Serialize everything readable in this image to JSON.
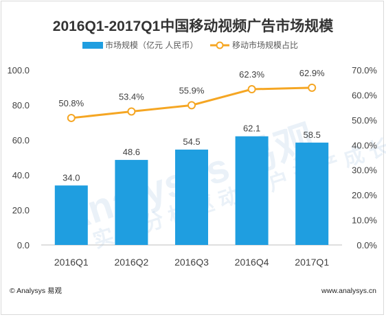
{
  "footer": {
    "left": "© Analysys 易观",
    "right": "www.analysys.cn"
  },
  "chart_data": {
    "type": "bar",
    "title": "2016Q1-2017Q1中国移动视频广告市场规模",
    "categories": [
      "2016Q1",
      "2016Q2",
      "2016Q3",
      "2016Q4",
      "2017Q1"
    ],
    "series": [
      {
        "name": "市场规模（亿元 人民币）",
        "type": "bar",
        "axis": "left",
        "values": [
          34.0,
          48.6,
          54.5,
          62.1,
          58.5
        ],
        "labels": [
          "34.0",
          "48.6",
          "54.5",
          "62.1",
          "58.5"
        ],
        "color": "#1f9ee0"
      },
      {
        "name": "移动市场规模占比",
        "type": "line",
        "axis": "right",
        "values": [
          50.8,
          53.4,
          55.9,
          62.3,
          62.9
        ],
        "labels": [
          "50.8%",
          "53.4%",
          "55.9%",
          "62.3%",
          "62.9%"
        ],
        "color": "#f5a623"
      }
    ],
    "ylim": [
      0,
      100
    ],
    "yticks": [
      "0.0",
      "20.0",
      "40.0",
      "60.0",
      "80.0",
      "100.0"
    ],
    "y2lim": [
      0,
      70
    ],
    "y2ticks": [
      "0.0%",
      "10.0%",
      "20.0%",
      "30.0%",
      "40.0%",
      "50.0%",
      "60.0%",
      "70.0%"
    ],
    "legend_position": "top",
    "grid": false
  }
}
